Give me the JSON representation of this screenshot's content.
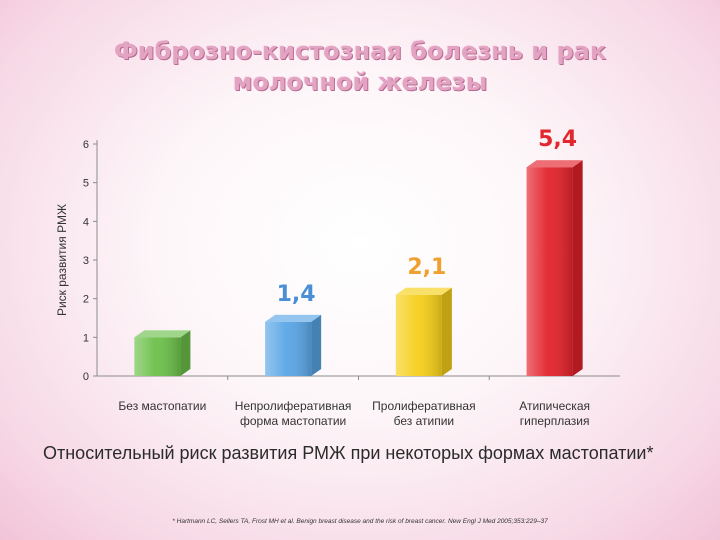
{
  "title": {
    "line1": "Фиброзно-кистозная болезнь и рак",
    "line2": "молочной железы"
  },
  "caption": "Относительный риск развития РМЖ при некоторых формах мастопатии*",
  "footnote": "* Hartmann LC, Sellers TA, Frost MH et al. Benign breast disease and the risk of breast cancer. New Engl J Med 2005;353:229–37",
  "chart_data": {
    "type": "bar",
    "ylabel": "Риск развития РМЖ",
    "ylim": [
      0,
      6
    ],
    "yticks": [
      "0",
      "1",
      "2",
      "3",
      "4",
      "5",
      "6"
    ],
    "categories": [
      [
        "Без мастопатии"
      ],
      [
        "Непролиферативная",
        "форма мастопатии"
      ],
      [
        "Пролиферативная",
        "без атипии"
      ],
      [
        "Атипическая",
        "гиперплазия"
      ]
    ],
    "values": [
      1,
      1.4,
      2.1,
      5.4
    ],
    "data_labels": [
      "",
      "1,4",
      "2,1",
      "5,4"
    ],
    "colors": [
      "#6cc04a",
      "#5aa6e6",
      "#f6cf1a",
      "#e3222b"
    ],
    "label_colors": [
      "",
      "#4a8fd6",
      "#f0a030",
      "#e2282e"
    ],
    "grid": false
  }
}
